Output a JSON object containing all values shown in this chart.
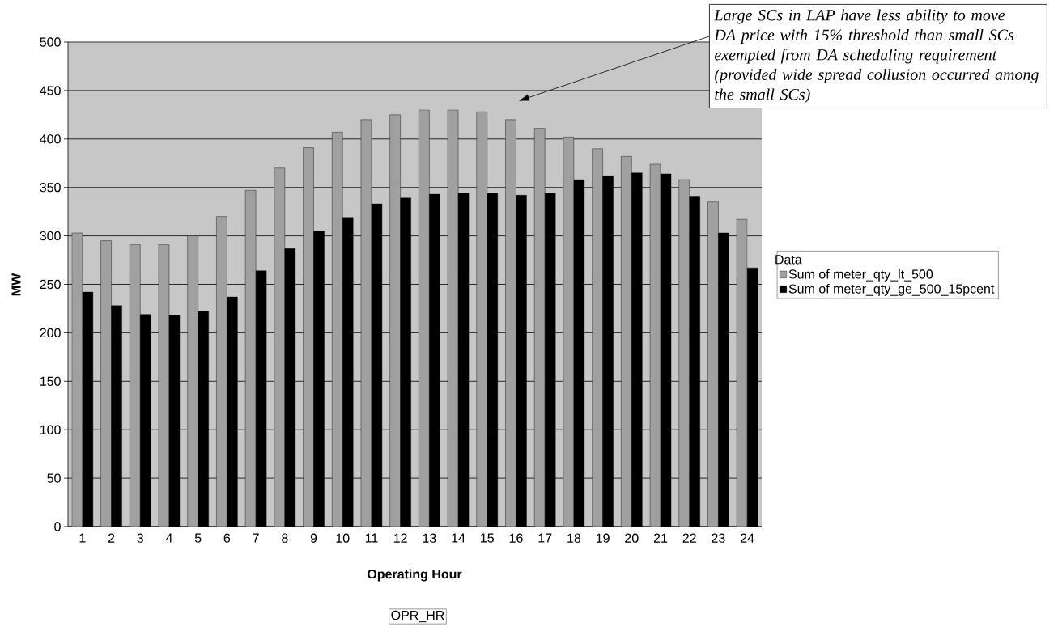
{
  "chart_data": {
    "type": "bar",
    "xlabel": "Operating Hour",
    "ylabel": "MW",
    "legend_title": "Data",
    "categories": [
      "1",
      "2",
      "3",
      "4",
      "5",
      "6",
      "7",
      "8",
      "9",
      "10",
      "11",
      "12",
      "13",
      "14",
      "15",
      "16",
      "17",
      "18",
      "19",
      "20",
      "21",
      "22",
      "23",
      "24"
    ],
    "series": [
      {
        "name": "Sum of meter_qty_lt_500",
        "color": "#a0a0a0",
        "values": [
          303,
          295,
          291,
          291,
          300,
          320,
          347,
          370,
          391,
          407,
          420,
          425,
          430,
          430,
          428,
          420,
          411,
          402,
          390,
          382,
          374,
          358,
          335,
          317
        ]
      },
      {
        "name": "Sum of meter_qty_ge_500_15pcent",
        "color": "#000000",
        "values": [
          242,
          228,
          219,
          218,
          222,
          237,
          264,
          287,
          305,
          319,
          333,
          339,
          343,
          344,
          344,
          342,
          344,
          358,
          362,
          365,
          364,
          341,
          303,
          267
        ]
      }
    ],
    "ylim": [
      0,
      500
    ],
    "yticks": [
      0,
      50,
      100,
      150,
      200,
      250,
      300,
      350,
      400,
      450,
      500
    ],
    "grid": "y",
    "legend": "right",
    "annotations": [
      "Large SCs in LAP have less ability to move DA price with 15% threshold than small SCs exempted from DA scheduling requirement (provided wide spread collusion occurred among the small SCs)",
      "OPR_HR"
    ]
  }
}
